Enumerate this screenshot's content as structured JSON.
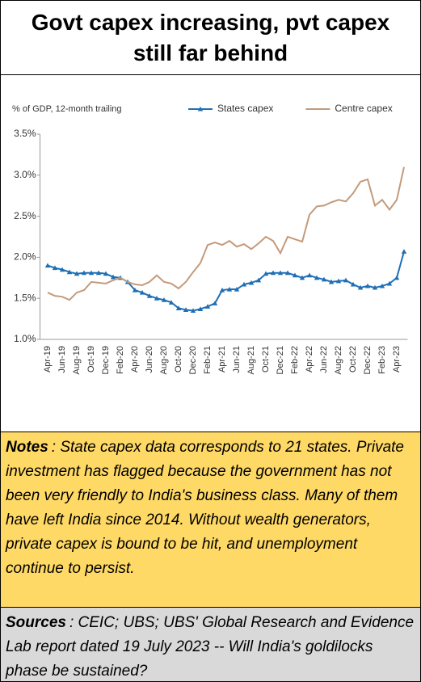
{
  "header": {
    "title": "Govt capex increasing, pvt capex still far behind"
  },
  "chart_data": {
    "type": "line",
    "y_label": "% of GDP, 12-month trailing",
    "categories": [
      "Apr-19",
      null,
      "Jun-19",
      null,
      "Aug-19",
      null,
      "Oct-19",
      null,
      "Dec-19",
      null,
      "Feb-20",
      null,
      "Apr-20",
      null,
      "Jun-20",
      null,
      "Aug-20",
      null,
      "Oct-20",
      null,
      "Dec-20",
      null,
      "Feb-21",
      null,
      "Apr-21",
      null,
      "Jun-21",
      null,
      "Aug-21",
      null,
      "Oct-21",
      null,
      "Dec-21",
      null,
      "Feb-22",
      null,
      "Apr-22",
      null,
      "Jun-22",
      null,
      "Aug-22",
      null,
      "Oct-22",
      null,
      "Dec-22",
      null,
      "Feb-23",
      null,
      "Apr-23",
      null
    ],
    "series": [
      {
        "name": "States capex",
        "color": "#1f6fb5",
        "marker": "triangle",
        "values": [
          1.9,
          1.87,
          1.85,
          1.82,
          1.8,
          1.81,
          1.81,
          1.81,
          1.8,
          1.76,
          1.75,
          1.7,
          1.6,
          1.57,
          1.53,
          1.5,
          1.48,
          1.45,
          1.38,
          1.36,
          1.35,
          1.37,
          1.4,
          1.44,
          1.6,
          1.61,
          1.61,
          1.67,
          1.69,
          1.72,
          1.8,
          1.81,
          1.81,
          1.81,
          1.78,
          1.75,
          1.78,
          1.75,
          1.73,
          1.7,
          1.71,
          1.72,
          1.67,
          1.63,
          1.65,
          1.63,
          1.65,
          1.68,
          1.75,
          2.07
        ]
      },
      {
        "name": "Centre capex",
        "color": "#c49a7a",
        "values": [
          1.57,
          1.53,
          1.52,
          1.48,
          1.57,
          1.6,
          1.7,
          1.69,
          1.68,
          1.72,
          1.75,
          1.7,
          1.67,
          1.66,
          1.7,
          1.78,
          1.7,
          1.68,
          1.62,
          1.7,
          1.82,
          1.93,
          2.15,
          2.18,
          2.15,
          2.2,
          2.13,
          2.16,
          2.1,
          2.17,
          2.25,
          2.2,
          2.05,
          2.25,
          2.22,
          2.19,
          2.52,
          2.62,
          2.63,
          2.67,
          2.7,
          2.68,
          2.78,
          2.92,
          2.95,
          2.63,
          2.7,
          2.58,
          2.7,
          3.1
        ]
      }
    ],
    "ylim": [
      1.0,
      3.5
    ],
    "yticks": [
      {
        "value": 1.0,
        "label": "1.0%"
      },
      {
        "value": 1.5,
        "label": "1.5%"
      },
      {
        "value": 2.0,
        "label": "2.0%"
      },
      {
        "value": 2.5,
        "label": "2.5%"
      },
      {
        "value": 3.0,
        "label": "3.0%"
      },
      {
        "value": 3.5,
        "label": "3.5%"
      }
    ],
    "grid": false,
    "legend": "top"
  },
  "notes": {
    "label": "Notes",
    "text": ": State capex data corresponds to 21 states. Private investment has flagged because the government has not been very friendly to India's business class.  Many of them have left India since 2014. Without wealth generators, private capex is bound to be hit, and unemployment continue to persist."
  },
  "sources": {
    "label": "Sources",
    "text": ": CEIC; UBS; UBS' Global Research and Evidence Lab report dated 19 July 2023 -- Will India's goldilocks phase be sustained?"
  }
}
